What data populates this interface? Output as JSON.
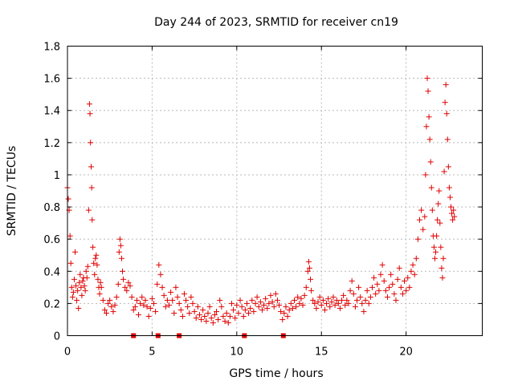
{
  "chart_data": {
    "type": "scatter",
    "title": "Day 244 of 2023, SRMTID for receiver cn19",
    "xlabel": "GPS time / hours",
    "ylabel": "SRMTID / TECUs",
    "xlim": [
      0,
      24.5
    ],
    "ylim": [
      0,
      1.8
    ],
    "xticks": [
      0,
      5,
      10,
      15,
      20
    ],
    "xtick_labels": [
      "0",
      "5",
      "10",
      "15",
      "20"
    ],
    "yticks": [
      0,
      0.2,
      0.4,
      0.6,
      0.8,
      1.0,
      1.2,
      1.4,
      1.6,
      1.8
    ],
    "ytick_labels": [
      "0",
      "0.2",
      "0.4",
      "0.6",
      "0.8",
      "1",
      "1.2",
      "1.4",
      "1.6",
      "1.8"
    ],
    "grid": true,
    "marker": "+",
    "color": "#e00000",
    "series": [
      {
        "name": "SRMTID",
        "points": [
          [
            0.0,
            0.92
          ],
          [
            0.05,
            0.85
          ],
          [
            0.1,
            0.78
          ],
          [
            0.15,
            0.62
          ],
          [
            0.2,
            0.45
          ],
          [
            0.25,
            0.3
          ],
          [
            0.3,
            0.24
          ],
          [
            0.35,
            0.27
          ],
          [
            0.4,
            0.35
          ],
          [
            0.45,
            0.52
          ],
          [
            0.5,
            0.31
          ],
          [
            0.55,
            0.22
          ],
          [
            0.6,
            0.28
          ],
          [
            0.65,
            0.17
          ],
          [
            0.7,
            0.33
          ],
          [
            0.75,
            0.38
          ],
          [
            0.8,
            0.3
          ],
          [
            0.85,
            0.25
          ],
          [
            0.9,
            0.34
          ],
          [
            0.95,
            0.36
          ],
          [
            1.0,
            0.31
          ],
          [
            1.05,
            0.28
          ],
          [
            1.1,
            0.4
          ],
          [
            1.15,
            0.36
          ],
          [
            1.2,
            0.43
          ],
          [
            1.25,
            0.78
          ],
          [
            1.3,
            1.44
          ],
          [
            1.33,
            1.38
          ],
          [
            1.36,
            1.2
          ],
          [
            1.4,
            1.05
          ],
          [
            1.43,
            0.92
          ],
          [
            1.46,
            0.72
          ],
          [
            1.5,
            0.55
          ],
          [
            1.55,
            0.45
          ],
          [
            1.6,
            0.38
          ],
          [
            1.65,
            0.48
          ],
          [
            1.7,
            0.5
          ],
          [
            1.75,
            0.44
          ],
          [
            1.8,
            0.35
          ],
          [
            1.85,
            0.3
          ],
          [
            1.9,
            0.26
          ],
          [
            1.95,
            0.33
          ],
          [
            2.0,
            0.3
          ],
          [
            2.1,
            0.22
          ],
          [
            2.2,
            0.16
          ],
          [
            2.3,
            0.14
          ],
          [
            2.4,
            0.2
          ],
          [
            2.5,
            0.22
          ],
          [
            2.6,
            0.18
          ],
          [
            2.7,
            0.15
          ],
          [
            2.8,
            0.19
          ],
          [
            2.9,
            0.24
          ],
          [
            3.0,
            0.32
          ],
          [
            3.05,
            0.52
          ],
          [
            3.1,
            0.6
          ],
          [
            3.15,
            0.56
          ],
          [
            3.2,
            0.48
          ],
          [
            3.25,
            0.4
          ],
          [
            3.3,
            0.35
          ],
          [
            3.4,
            0.3
          ],
          [
            3.5,
            0.28
          ],
          [
            3.6,
            0.33
          ],
          [
            3.7,
            0.31
          ],
          [
            3.8,
            0.24
          ],
          [
            3.9,
            0.16
          ],
          [
            4.0,
            0.18
          ],
          [
            4.1,
            0.22
          ],
          [
            4.2,
            0.13
          ],
          [
            4.3,
            0.2
          ],
          [
            4.4,
            0.24
          ],
          [
            4.5,
            0.19
          ],
          [
            4.6,
            0.22
          ],
          [
            4.7,
            0.18
          ],
          [
            4.8,
            0.12
          ],
          [
            4.9,
            0.17
          ],
          [
            5.0,
            0.23
          ],
          [
            5.1,
            0.2
          ],
          [
            5.2,
            0.15
          ],
          [
            5.3,
            0.32
          ],
          [
            5.4,
            0.44
          ],
          [
            5.5,
            0.38
          ],
          [
            5.6,
            0.3
          ],
          [
            5.7,
            0.25
          ],
          [
            5.8,
            0.18
          ],
          [
            5.9,
            0.22
          ],
          [
            6.0,
            0.19
          ],
          [
            6.1,
            0.27
          ],
          [
            6.2,
            0.22
          ],
          [
            6.3,
            0.14
          ],
          [
            6.4,
            0.3
          ],
          [
            6.5,
            0.24
          ],
          [
            6.6,
            0.2
          ],
          [
            6.7,
            0.16
          ],
          [
            6.8,
            0.12
          ],
          [
            6.9,
            0.26
          ],
          [
            7.0,
            0.22
          ],
          [
            7.1,
            0.18
          ],
          [
            7.2,
            0.14
          ],
          [
            7.3,
            0.24
          ],
          [
            7.4,
            0.2
          ],
          [
            7.5,
            0.15
          ],
          [
            7.6,
            0.11
          ],
          [
            7.7,
            0.18
          ],
          [
            7.8,
            0.13
          ],
          [
            7.9,
            0.1
          ],
          [
            8.0,
            0.16
          ],
          [
            8.1,
            0.12
          ],
          [
            8.2,
            0.09
          ],
          [
            8.3,
            0.14
          ],
          [
            8.4,
            0.18
          ],
          [
            8.5,
            0.11
          ],
          [
            8.6,
            0.08
          ],
          [
            8.7,
            0.13
          ],
          [
            8.8,
            0.15
          ],
          [
            8.9,
            0.1
          ],
          [
            9.0,
            0.22
          ],
          [
            9.1,
            0.18
          ],
          [
            9.2,
            0.12
          ],
          [
            9.3,
            0.09
          ],
          [
            9.4,
            0.14
          ],
          [
            9.5,
            0.08
          ],
          [
            9.6,
            0.12
          ],
          [
            9.7,
            0.2
          ],
          [
            9.8,
            0.16
          ],
          [
            9.9,
            0.11
          ],
          [
            10.0,
            0.19
          ],
          [
            10.1,
            0.14
          ],
          [
            10.2,
            0.22
          ],
          [
            10.3,
            0.18
          ],
          [
            10.4,
            0.12
          ],
          [
            10.5,
            0.16
          ],
          [
            10.6,
            0.2
          ],
          [
            10.7,
            0.14
          ],
          [
            10.8,
            0.17
          ],
          [
            10.9,
            0.22
          ],
          [
            11.0,
            0.15
          ],
          [
            11.1,
            0.2
          ],
          [
            11.2,
            0.24
          ],
          [
            11.3,
            0.18
          ],
          [
            11.4,
            0.21
          ],
          [
            11.5,
            0.16
          ],
          [
            11.6,
            0.19
          ],
          [
            11.7,
            0.23
          ],
          [
            11.8,
            0.17
          ],
          [
            11.9,
            0.2
          ],
          [
            12.0,
            0.25
          ],
          [
            12.1,
            0.21
          ],
          [
            12.2,
            0.18
          ],
          [
            12.3,
            0.26
          ],
          [
            12.4,
            0.22
          ],
          [
            12.5,
            0.19
          ],
          [
            12.6,
            0.15
          ],
          [
            12.7,
            0.1
          ],
          [
            12.8,
            0.14
          ],
          [
            12.9,
            0.18
          ],
          [
            13.0,
            0.12
          ],
          [
            13.1,
            0.16
          ],
          [
            13.2,
            0.2
          ],
          [
            13.3,
            0.17
          ],
          [
            13.4,
            0.22
          ],
          [
            13.5,
            0.18
          ],
          [
            13.6,
            0.24
          ],
          [
            13.7,
            0.2
          ],
          [
            13.8,
            0.23
          ],
          [
            13.9,
            0.19
          ],
          [
            14.0,
            0.25
          ],
          [
            14.1,
            0.3
          ],
          [
            14.2,
            0.4
          ],
          [
            14.25,
            0.46
          ],
          [
            14.3,
            0.42
          ],
          [
            14.35,
            0.35
          ],
          [
            14.4,
            0.28
          ],
          [
            14.5,
            0.22
          ],
          [
            14.6,
            0.2
          ],
          [
            14.7,
            0.17
          ],
          [
            14.8,
            0.21
          ],
          [
            14.9,
            0.24
          ],
          [
            15.0,
            0.19
          ],
          [
            15.1,
            0.22
          ],
          [
            15.2,
            0.16
          ],
          [
            15.3,
            0.2
          ],
          [
            15.4,
            0.23
          ],
          [
            15.5,
            0.18
          ],
          [
            15.6,
            0.21
          ],
          [
            15.7,
            0.24
          ],
          [
            15.8,
            0.19
          ],
          [
            15.9,
            0.22
          ],
          [
            16.0,
            0.2
          ],
          [
            16.1,
            0.17
          ],
          [
            16.2,
            0.22
          ],
          [
            16.3,
            0.25
          ],
          [
            16.4,
            0.19
          ],
          [
            16.5,
            0.22
          ],
          [
            16.6,
            0.2
          ],
          [
            16.7,
            0.28
          ],
          [
            16.8,
            0.34
          ],
          [
            16.9,
            0.26
          ],
          [
            17.0,
            0.18
          ],
          [
            17.1,
            0.22
          ],
          [
            17.2,
            0.3
          ],
          [
            17.3,
            0.24
          ],
          [
            17.4,
            0.2
          ],
          [
            17.5,
            0.15
          ],
          [
            17.6,
            0.22
          ],
          [
            17.7,
            0.28
          ],
          [
            17.8,
            0.2
          ],
          [
            17.9,
            0.24
          ],
          [
            18.0,
            0.3
          ],
          [
            18.1,
            0.36
          ],
          [
            18.2,
            0.26
          ],
          [
            18.3,
            0.32
          ],
          [
            18.4,
            0.28
          ],
          [
            18.5,
            0.38
          ],
          [
            18.6,
            0.44
          ],
          [
            18.7,
            0.34
          ],
          [
            18.8,
            0.28
          ],
          [
            18.9,
            0.24
          ],
          [
            19.0,
            0.3
          ],
          [
            19.1,
            0.38
          ],
          [
            19.2,
            0.32
          ],
          [
            19.3,
            0.26
          ],
          [
            19.4,
            0.22
          ],
          [
            19.5,
            0.35
          ],
          [
            19.6,
            0.42
          ],
          [
            19.7,
            0.3
          ],
          [
            19.8,
            0.26
          ],
          [
            19.9,
            0.34
          ],
          [
            20.0,
            0.28
          ],
          [
            20.1,
            0.36
          ],
          [
            20.2,
            0.3
          ],
          [
            20.3,
            0.4
          ],
          [
            20.4,
            0.44
          ],
          [
            20.5,
            0.38
          ],
          [
            20.6,
            0.48
          ],
          [
            20.7,
            0.6
          ],
          [
            20.8,
            0.72
          ],
          [
            20.9,
            0.78
          ],
          [
            21.0,
            0.66
          ],
          [
            21.1,
            0.74
          ],
          [
            21.15,
            1.0
          ],
          [
            21.2,
            1.3
          ],
          [
            21.25,
            1.6
          ],
          [
            21.3,
            1.52
          ],
          [
            21.35,
            1.36
          ],
          [
            21.4,
            1.22
          ],
          [
            21.45,
            1.08
          ],
          [
            21.5,
            0.92
          ],
          [
            21.55,
            0.78
          ],
          [
            21.6,
            0.62
          ],
          [
            21.65,
            0.55
          ],
          [
            21.7,
            0.48
          ],
          [
            21.75,
            0.52
          ],
          [
            21.8,
            0.62
          ],
          [
            21.85,
            0.72
          ],
          [
            21.9,
            0.82
          ],
          [
            21.95,
            0.9
          ],
          [
            22.0,
            0.7
          ],
          [
            22.05,
            0.55
          ],
          [
            22.1,
            0.42
          ],
          [
            22.15,
            0.36
          ],
          [
            22.2,
            0.48
          ],
          [
            22.25,
            1.02
          ],
          [
            22.3,
            1.45
          ],
          [
            22.35,
            1.56
          ],
          [
            22.4,
            1.38
          ],
          [
            22.45,
            1.22
          ],
          [
            22.5,
            1.05
          ],
          [
            22.55,
            0.92
          ],
          [
            22.6,
            0.86
          ],
          [
            22.65,
            0.8
          ],
          [
            22.7,
            0.76
          ],
          [
            22.75,
            0.72
          ],
          [
            22.8,
            0.78
          ],
          [
            22.85,
            0.74
          ]
        ]
      }
    ],
    "bottom_markers_x": [
      3.9,
      5.35,
      6.6,
      10.45,
      12.75
    ]
  }
}
